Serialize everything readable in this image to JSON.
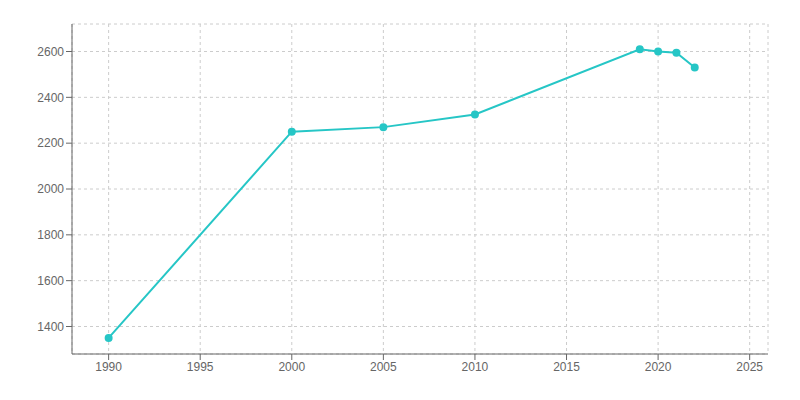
{
  "chart_data": {
    "type": "line",
    "x": [
      1990,
      2000,
      2005,
      2010,
      2019,
      2020,
      2021,
      2022
    ],
    "values": [
      1350,
      2250,
      2270,
      2325,
      2610,
      2600,
      2595,
      2530
    ],
    "color": "#26C6C6",
    "marker": "circle",
    "xlim": [
      1988,
      2026
    ],
    "ylim": [
      1280,
      2720
    ],
    "xticks": [
      1990,
      1995,
      2000,
      2005,
      2010,
      2015,
      2020,
      2025
    ],
    "yticks": [
      1400,
      1600,
      1800,
      2000,
      2200,
      2400,
      2600
    ],
    "grid": true
  }
}
